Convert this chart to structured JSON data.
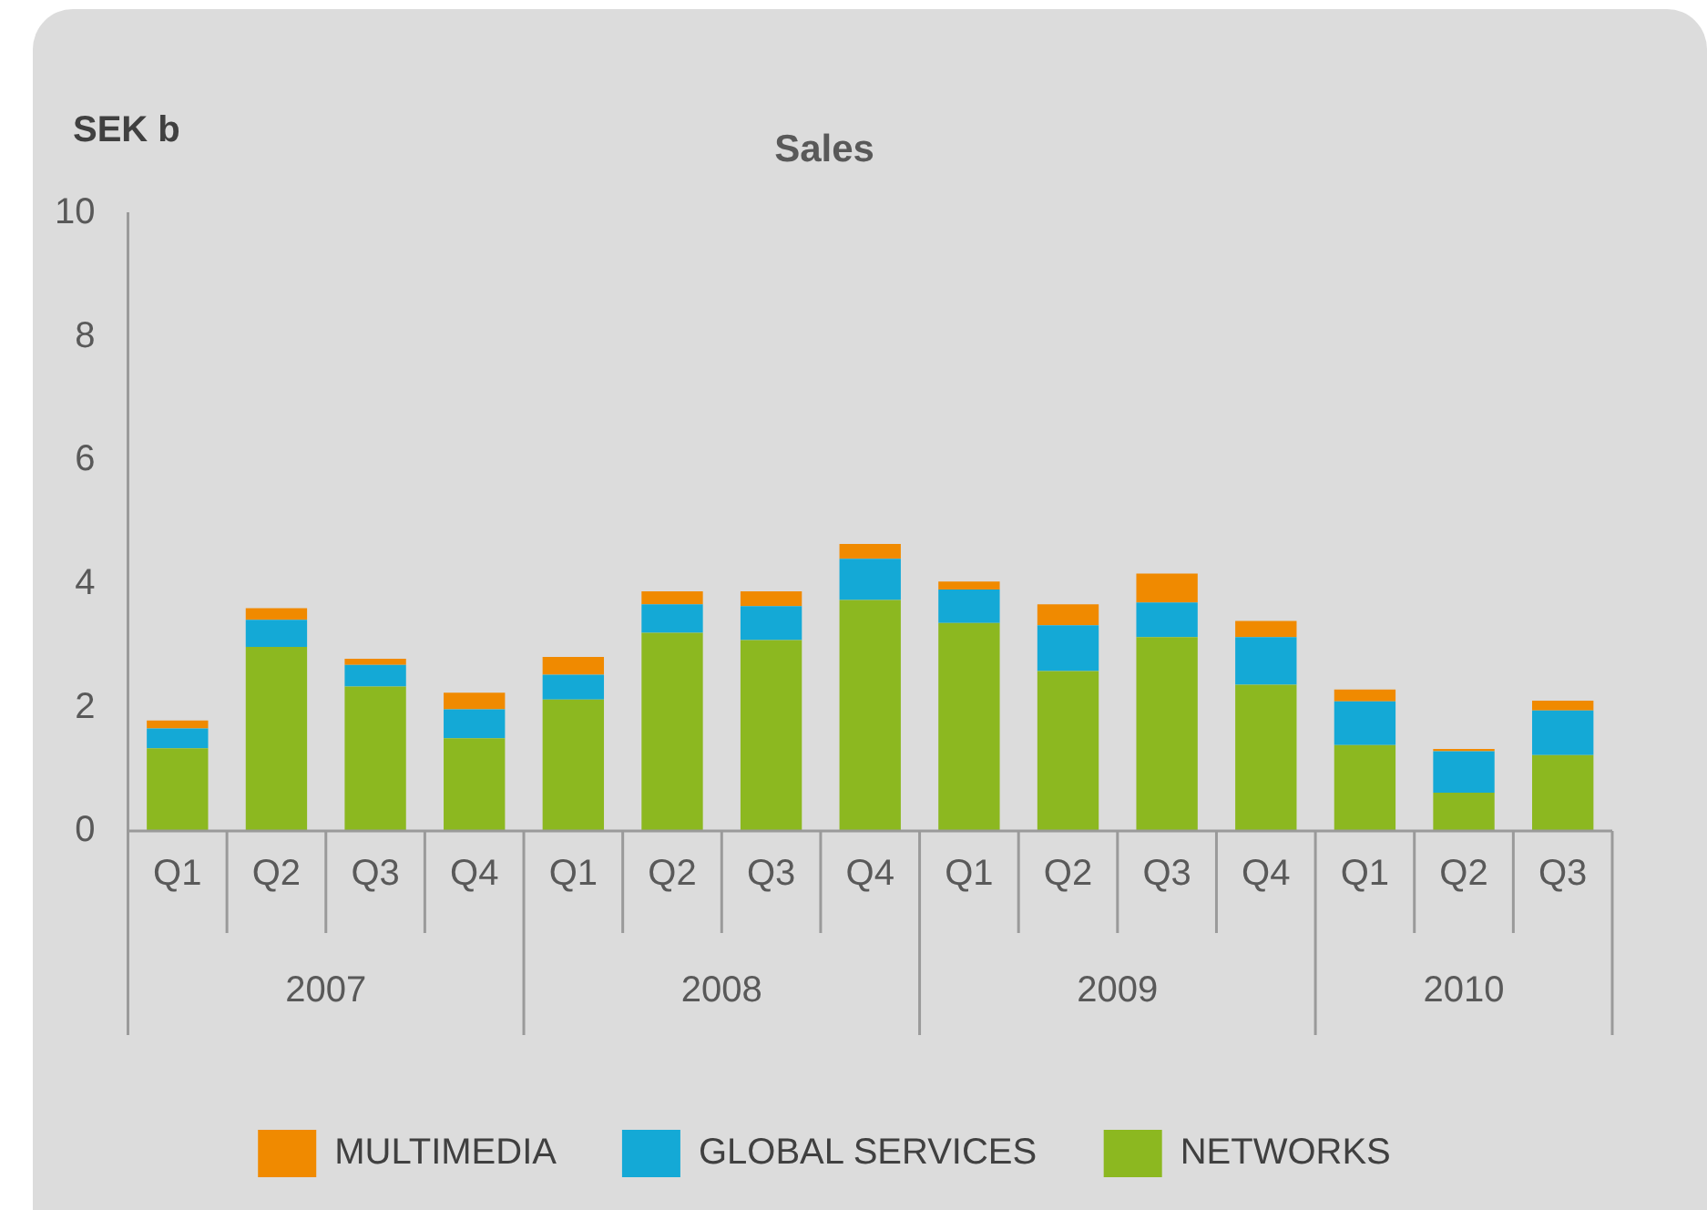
{
  "chart_data": {
    "type": "bar",
    "title": "Sales",
    "ylabel": "SEK b",
    "categories": [
      "Q1",
      "Q2",
      "Q3",
      "Q4",
      "Q1",
      "Q2",
      "Q3",
      "Q4",
      "Q1",
      "Q2",
      "Q3",
      "Q4",
      "Q1",
      "Q2",
      "Q3"
    ],
    "annotations": [
      "2007",
      "2008",
      "2009",
      "2010"
    ],
    "stacked": true,
    "series": [
      {
        "name": "NETWORKS",
        "color": "#8cb820",
        "values": [
          1.34,
          2.98,
          2.34,
          1.5,
          2.13,
          3.21,
          3.09,
          3.74,
          3.37,
          2.59,
          3.14,
          2.37,
          1.39,
          0.62,
          1.23
        ]
      },
      {
        "name": "GLOBAL SERVICES",
        "color": "#14a9d6",
        "values": [
          0.32,
          0.44,
          0.35,
          0.47,
          0.4,
          0.46,
          0.55,
          0.67,
          0.54,
          0.74,
          0.56,
          0.77,
          0.71,
          0.67,
          0.72
        ]
      },
      {
        "name": "MULTIMEDIA",
        "color": "#f08a00",
        "values": [
          0.13,
          0.19,
          0.1,
          0.27,
          0.29,
          0.21,
          0.24,
          0.24,
          0.13,
          0.34,
          0.47,
          0.26,
          0.19,
          0.04,
          0.16
        ]
      }
    ],
    "ylim": [
      0,
      10
    ],
    "yticks": [
      0,
      2,
      4,
      6,
      8,
      10
    ],
    "grid": false,
    "legend": "bottom"
  }
}
